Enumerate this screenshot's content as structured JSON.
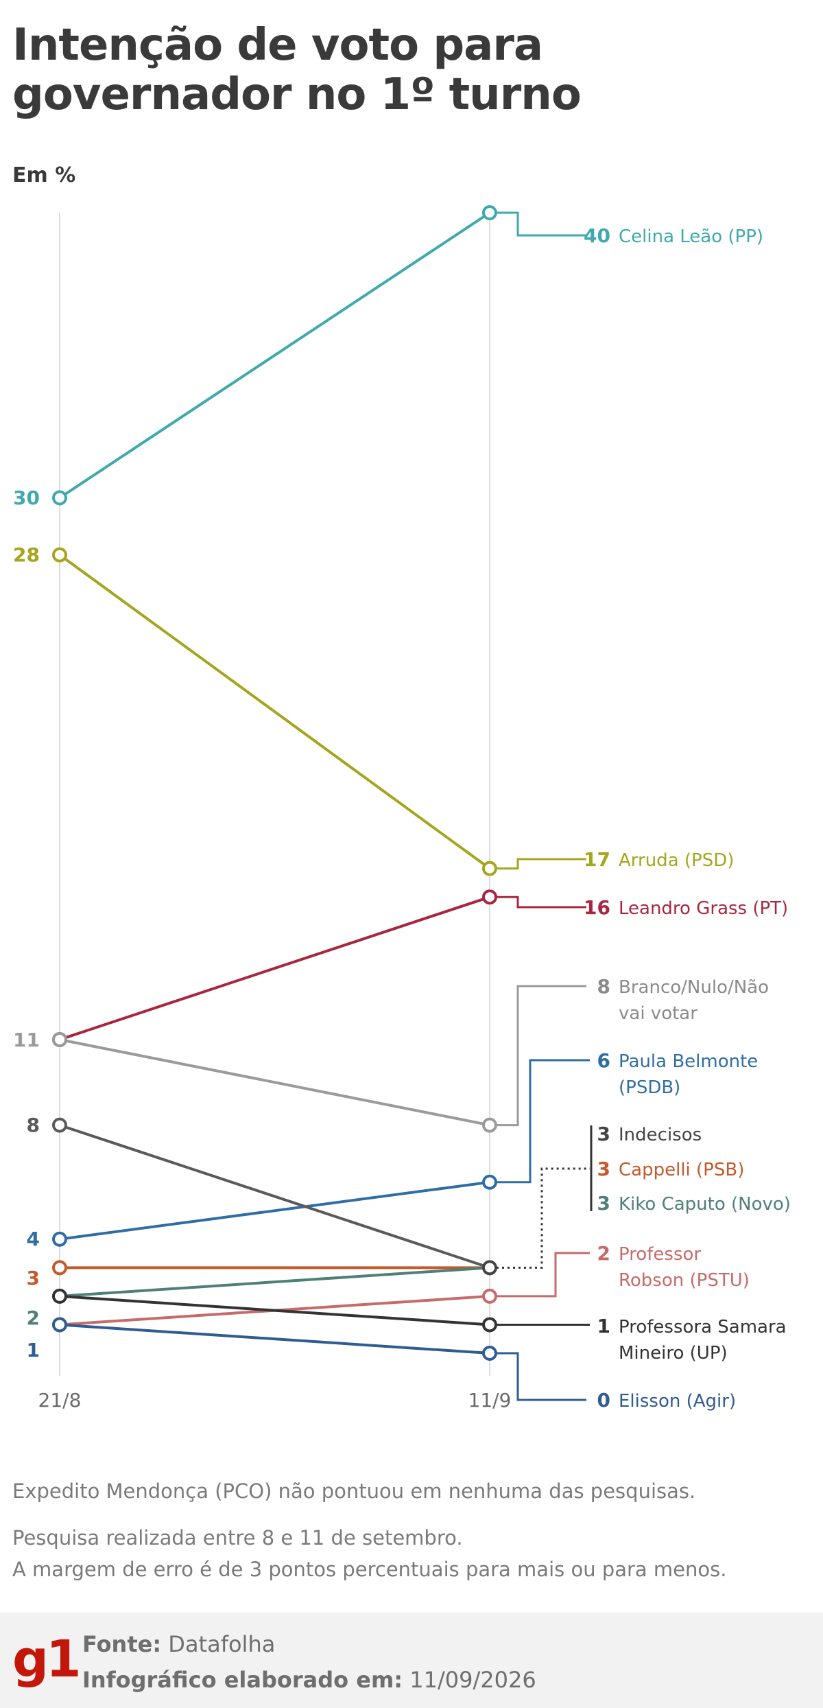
{
  "header": {
    "title": "Intenção de voto para governador no 1º turno",
    "unit": "Em %"
  },
  "chart_data": {
    "type": "line",
    "x": [
      "21/8",
      "11/9"
    ],
    "ylim": [
      0,
      40
    ],
    "series": [
      {
        "name": "Celina Leão (PP)",
        "values": [
          30,
          40
        ],
        "color": "#3fa9ad"
      },
      {
        "name": "Arruda (PSD)",
        "values": [
          28,
          17
        ],
        "color": "#a5a51e"
      },
      {
        "name": "Leandro Grass (PT)",
        "values": [
          11,
          16
        ],
        "color": "#a8273f"
      },
      {
        "name": "Branco/Nulo/Não vai votar",
        "values": [
          11,
          8
        ],
        "color": "#9a9a9a"
      },
      {
        "name": "Paula Belmonte (PSDB)",
        "values": [
          4,
          6
        ],
        "color": "#2f6ea5"
      },
      {
        "name": "Indecisos",
        "values": [
          8,
          3
        ],
        "color": "#5a5a5a"
      },
      {
        "name": "Cappelli (PSB)",
        "values": [
          3,
          3
        ],
        "color": "#c45a2c"
      },
      {
        "name": "Kiko Caputo (Novo)",
        "values": [
          2,
          3
        ],
        "color": "#4f7f79"
      },
      {
        "name": "Professor Robson (PSTU)",
        "values": [
          1,
          2
        ],
        "color": "#c76a6a"
      },
      {
        "name": "Professora Samara Mineiro (UP)",
        "values": [
          2,
          1
        ],
        "color": "#333333"
      },
      {
        "name": "Elisson (Agir)",
        "values": [
          1,
          0
        ],
        "color": "#2e5c93"
      }
    ],
    "left_labels": [
      {
        "text": "30",
        "color": "#3fa9ad"
      },
      {
        "text": "28",
        "color": "#a5a51e"
      },
      {
        "text": "11",
        "color": "#9a9a9a"
      },
      {
        "text": "8",
        "color": "#5a5a5a"
      },
      {
        "text": "4",
        "color": "#2f6ea5"
      },
      {
        "text": "3",
        "color": "#c45a2c"
      },
      {
        "text": "2",
        "color": "#4f7f79"
      },
      {
        "text": "1",
        "color": "#2e5c93"
      }
    ],
    "right_labels": [
      {
        "value": "40",
        "lines": [
          "Celina Leão (PP)"
        ],
        "color": "#3fa9ad"
      },
      {
        "value": "17",
        "lines": [
          "Arruda (PSD)"
        ],
        "color": "#a5a51e"
      },
      {
        "value": "16",
        "lines": [
          "Leandro Grass (PT)"
        ],
        "color": "#a8273f"
      },
      {
        "value": "8",
        "lines": [
          "Branco/Nulo/Não",
          "vai votar"
        ],
        "color": "#8a8a8a"
      },
      {
        "value": "6",
        "lines": [
          "Paula Belmonte",
          "(PSDB)"
        ],
        "color": "#2f6ea5"
      },
      {
        "value": "3",
        "lines": [
          "Indecisos"
        ],
        "color": "#444444"
      },
      {
        "value": "3",
        "lines": [
          "Cappelli (PSB)"
        ],
        "color": "#c45a2c"
      },
      {
        "value": "3",
        "lines": [
          "Kiko Caputo (Novo)"
        ],
        "color": "#4f7f79"
      },
      {
        "value": "2",
        "lines": [
          "Professor",
          "Robson (PSTU)"
        ],
        "color": "#c76a6a"
      },
      {
        "value": "1",
        "lines": [
          "Professora Samara",
          "Mineiro (UP)"
        ],
        "color": "#333333"
      },
      {
        "value": "0",
        "lines": [
          "Elisson (Agir)"
        ],
        "color": "#2e5c93"
      }
    ]
  },
  "notes": {
    "note1": "Expedito Mendonça (PCO) não pontuou em nenhuma das pesquisas.",
    "note2a": "Pesquisa realizada entre 8 e 11 de setembro.",
    "note2b": "A margem de erro é de 3 pontos percentuais para mais ou para menos."
  },
  "footer": {
    "logo": "g1",
    "source_label": "Fonte:",
    "source_value": "Datafolha",
    "date_label": "Infográfico elaborado em:",
    "date_value": "11/09/2026"
  }
}
